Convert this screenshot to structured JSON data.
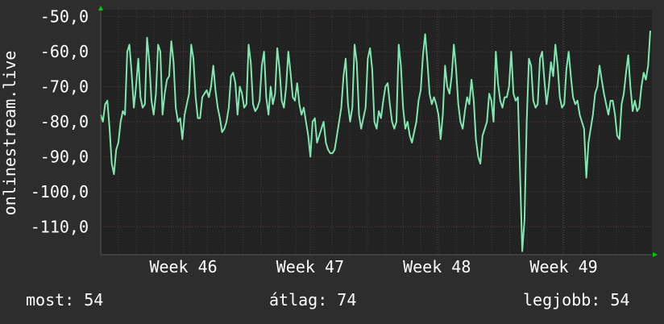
{
  "chart_data": {
    "type": "line",
    "ylabel": "onlinestream.live",
    "ylim": [
      -118,
      -48
    ],
    "yticks": [
      -50,
      -60,
      -70,
      -80,
      -90,
      -100,
      -110
    ],
    "yticklabels": [
      "-50,0",
      "-60,0",
      "-70,0",
      "-80,0",
      "-90,0",
      "-100,0",
      "-110,0"
    ],
    "xticklabels": [
      {
        "label": "Week 46",
        "t": 0.15
      },
      {
        "label": "Week 47",
        "t": 0.38
      },
      {
        "label": "Week 48",
        "t": 0.61
      },
      {
        "label": "Week 49",
        "t": 0.84
      }
    ],
    "grid": true,
    "colors": {
      "background": "#2d2d2d",
      "plot": "#222222",
      "line": "#7fe8b0",
      "grid": "#5a3a3a",
      "axis_arrow": "#00cc00"
    },
    "series": [
      {
        "values": [
          -78,
          -80,
          -75,
          -74,
          -82,
          -92,
          -95,
          -88,
          -86,
          -80,
          -77,
          -78,
          -60,
          -58,
          -66,
          -76,
          -70,
          -62,
          -73,
          -76,
          -75,
          -56,
          -63,
          -74,
          -78,
          -72,
          -58,
          -60,
          -78,
          -72,
          -68,
          -67,
          -57,
          -63,
          -76,
          -80,
          -79,
          -85,
          -78,
          -75,
          -72,
          -58,
          -62,
          -73,
          -79,
          -79,
          -73,
          -72,
          -71,
          -73,
          -70,
          -64,
          -71,
          -76,
          -79,
          -83,
          -82,
          -80,
          -76,
          -67,
          -66,
          -69,
          -78,
          -70,
          -72,
          -76,
          -75,
          -58,
          -63,
          -75,
          -77,
          -76,
          -74,
          -64,
          -60,
          -73,
          -78,
          -70,
          -75,
          -72,
          -59,
          -65,
          -74,
          -76,
          -70,
          -60,
          -66,
          -73,
          -74,
          -69,
          -75,
          -78,
          -76,
          -80,
          -84,
          -90,
          -80,
          -79,
          -86,
          -84,
          -82,
          -80,
          -86,
          -88,
          -89,
          -89,
          -88,
          -84,
          -80,
          -76,
          -67,
          -62,
          -75,
          -80,
          -76,
          -58,
          -63,
          -78,
          -82,
          -79,
          -76,
          -62,
          -59,
          -65,
          -80,
          -82,
          -77,
          -79,
          -74,
          -70,
          -69,
          -75,
          -80,
          -82,
          -80,
          -58,
          -64,
          -76,
          -82,
          -80,
          -84,
          -86,
          -83,
          -80,
          -74,
          -71,
          -61,
          -55,
          -63,
          -72,
          -75,
          -73,
          -75,
          -78,
          -85,
          -78,
          -64,
          -70,
          -72,
          -67,
          -58,
          -65,
          -75,
          -80,
          -82,
          -77,
          -73,
          -75,
          -68,
          -74,
          -85,
          -90,
          -92,
          -84,
          -82,
          -80,
          -72,
          -74,
          -80,
          -60,
          -69,
          -74,
          -76,
          -73,
          -73,
          -70,
          -60,
          -72,
          -74,
          -73,
          -95,
          -117,
          -108,
          -80,
          -62,
          -64,
          -74,
          -76,
          -75,
          -62,
          -60,
          -68,
          -75,
          -70,
          -63,
          -67,
          -58,
          -64,
          -73,
          -76,
          -75,
          -65,
          -60,
          -67,
          -73,
          -75,
          -74,
          -78,
          -80,
          -82,
          -96,
          -86,
          -82,
          -78,
          -72,
          -70,
          -64,
          -68,
          -72,
          -75,
          -78,
          -74,
          -74,
          -78,
          -84,
          -85,
          -75,
          -72,
          -66,
          -61,
          -70,
          -77,
          -74,
          -77,
          -76,
          -70,
          -66,
          -68,
          -64,
          -54
        ]
      }
    ]
  },
  "stats": {
    "current": "most: 54",
    "average": "átlag: 74",
    "best": "legjobb: 54"
  }
}
